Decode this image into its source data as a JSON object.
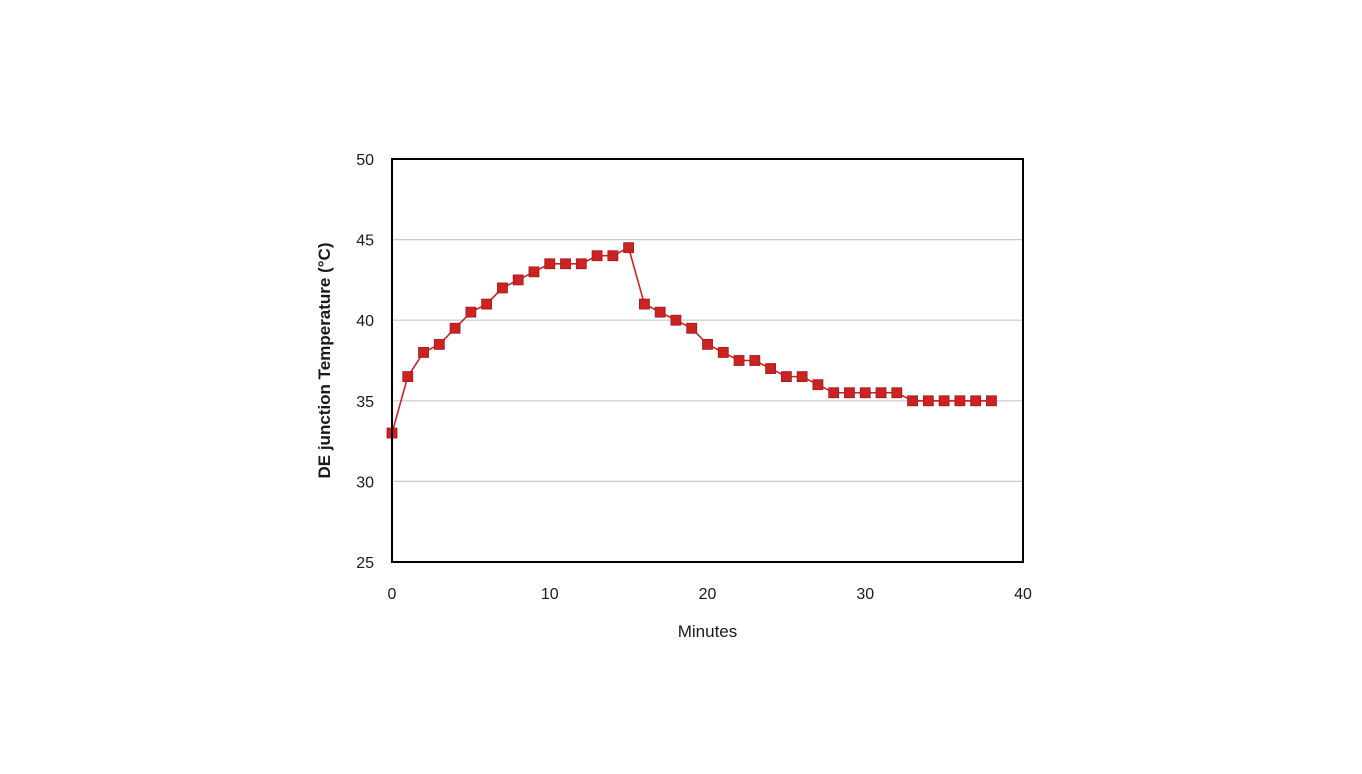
{
  "chart_data": {
    "type": "line",
    "title": "",
    "xlabel": "Minutes",
    "ylabel": "DE  junction Temperature (°C)",
    "xlim": [
      0,
      40
    ],
    "ylim": [
      25,
      50
    ],
    "xticks": [
      "0",
      "10",
      "20",
      "30",
      "40"
    ],
    "yticks": [
      "25",
      "30",
      "35",
      "40",
      "45",
      "50"
    ],
    "grid": "horizontal",
    "legend": "none",
    "marker": "square",
    "color": "#cc2222",
    "series": [
      {
        "x": [
          0,
          1,
          2,
          3,
          4,
          5,
          6,
          7,
          8,
          9,
          10,
          11,
          12,
          13,
          14,
          15,
          16,
          17,
          18,
          19,
          20,
          21,
          22,
          23,
          24,
          25,
          26,
          27,
          28,
          29,
          30,
          31,
          32,
          33,
          34,
          35,
          36,
          37,
          38
        ],
        "y": [
          33,
          36.5,
          38,
          38.5,
          39.5,
          40.5,
          41,
          42,
          42.5,
          43,
          43.5,
          43.5,
          43.5,
          44,
          44,
          44.5,
          41,
          40.5,
          40,
          39.5,
          38.5,
          38,
          37.5,
          37.5,
          37,
          36.5,
          36.5,
          36,
          35.5,
          35.5,
          35.5,
          35.5,
          35.5,
          35,
          35,
          35,
          35,
          35,
          35
        ]
      }
    ]
  }
}
